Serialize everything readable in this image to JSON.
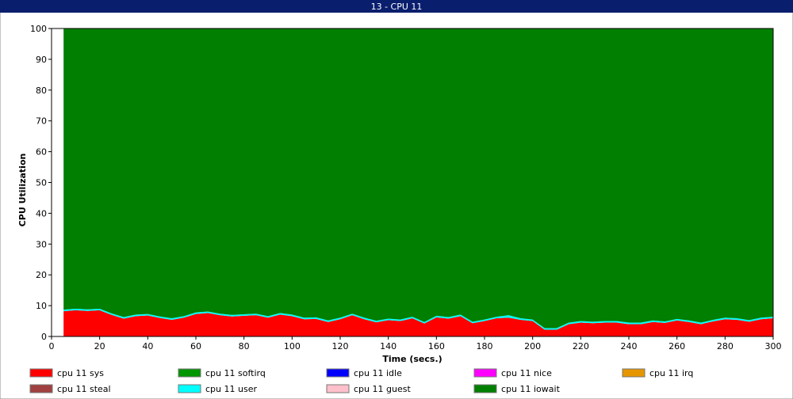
{
  "window_title": "13 - CPU 11",
  "chart_data": {
    "type": "stacked-area",
    "xlabel": "Time (secs.)",
    "ylabel": "CPU Utilization",
    "xlim": [
      0,
      300
    ],
    "xticks": [
      0,
      20,
      40,
      60,
      80,
      100,
      120,
      140,
      160,
      180,
      200,
      220,
      240,
      260,
      280,
      300
    ],
    "ylim": [
      0,
      100
    ],
    "yticks": [
      0,
      10,
      20,
      30,
      40,
      50,
      60,
      70,
      80,
      90,
      100
    ],
    "x": [
      5,
      10,
      15,
      20,
      25,
      30,
      35,
      40,
      45,
      50,
      55,
      60,
      65,
      70,
      75,
      80,
      85,
      90,
      95,
      100,
      105,
      110,
      115,
      120,
      125,
      130,
      135,
      140,
      145,
      150,
      155,
      160,
      165,
      170,
      175,
      180,
      185,
      190,
      195,
      200,
      205,
      210,
      215,
      220,
      225,
      230,
      235,
      240,
      245,
      250,
      255,
      260,
      265,
      270,
      275,
      280,
      285,
      290,
      295,
      300
    ],
    "series": [
      {
        "name": "cpu 11 sys",
        "color": "#ff0000",
        "values": [
          8.2,
          8.5,
          8.3,
          8.5,
          7,
          5.8,
          6.6,
          6.8,
          6,
          5.4,
          6.1,
          7.3,
          7.6,
          6.9,
          6.5,
          6.7,
          6.9,
          6.1,
          7.1,
          6.6,
          5.6,
          5.7,
          4.7,
          5.6,
          6.9,
          5.6,
          4.6,
          5.3,
          5,
          5.9,
          4.2,
          6.2,
          5.8,
          6.6,
          4.3,
          5,
          5.9,
          6.1,
          5.4,
          5,
          2.2,
          2.2,
          4,
          4.5,
          4.3,
          4.5,
          4.5,
          4,
          4,
          4.7,
          4.4,
          5.2,
          4.7,
          4,
          4.9,
          5.6,
          5.4,
          4.8,
          5.6,
          5.9
        ]
      },
      {
        "name": "cpu 11 softirq",
        "color": "#009600",
        "values": [
          0,
          0,
          0,
          0,
          0,
          0,
          0,
          0,
          0,
          0,
          0,
          0,
          0,
          0,
          0,
          0,
          0,
          0,
          0,
          0,
          0,
          0,
          0,
          0,
          0,
          0,
          0,
          0,
          0,
          0,
          0,
          0,
          0,
          0,
          0,
          0,
          0,
          0,
          0,
          0,
          0,
          0,
          0,
          0,
          0,
          0,
          0,
          0,
          0,
          0,
          0,
          0,
          0,
          0,
          0,
          0,
          0,
          0,
          0,
          0
        ]
      },
      {
        "name": "cpu 11 idle",
        "color": "#0000ff",
        "values": [
          0,
          0,
          0,
          0,
          0,
          0,
          0,
          0,
          0,
          0,
          0,
          0,
          0,
          0,
          0,
          0,
          0,
          0,
          0,
          0,
          0,
          0,
          0,
          0,
          0,
          0,
          0,
          0,
          0,
          0,
          0,
          0,
          0,
          0,
          0,
          0,
          0,
          0,
          0,
          0,
          0,
          0,
          0,
          0,
          0,
          0,
          0,
          0,
          0,
          0,
          0,
          0,
          0,
          0,
          0,
          0,
          0,
          0,
          0,
          0
        ]
      },
      {
        "name": "cpu 11 nice",
        "color": "#ff00ff",
        "values": [
          0,
          0,
          0,
          0,
          0,
          0,
          0,
          0,
          0,
          0,
          0,
          0,
          0,
          0,
          0,
          0,
          0,
          0,
          0,
          0,
          0,
          0,
          0,
          0,
          0,
          0,
          0,
          0,
          0,
          0,
          0,
          0,
          0,
          0,
          0,
          0,
          0,
          0,
          0,
          0,
          0,
          0,
          0,
          0,
          0,
          0,
          0,
          0,
          0,
          0,
          0,
          0,
          0,
          0,
          0,
          0,
          0,
          0,
          0,
          0
        ]
      },
      {
        "name": "cpu 11 irq",
        "color": "#e69600",
        "values": [
          0,
          0,
          0,
          0,
          0,
          0,
          0,
          0,
          0,
          0,
          0,
          0,
          0,
          0,
          0,
          0,
          0,
          0,
          0,
          0,
          0,
          0,
          0,
          0,
          0,
          0,
          0,
          0,
          0,
          0,
          0,
          0,
          0,
          0,
          0,
          0,
          0,
          0,
          0,
          0,
          0,
          0,
          0,
          0,
          0,
          0,
          0,
          0,
          0,
          0,
          0,
          0,
          0,
          0,
          0,
          0,
          0,
          0,
          0,
          0
        ]
      },
      {
        "name": "cpu 11 steal",
        "color": "#a04040",
        "values": [
          0,
          0,
          0,
          0,
          0,
          0,
          0,
          0,
          0,
          0,
          0,
          0,
          0,
          0,
          0,
          0,
          0,
          0,
          0,
          0,
          0,
          0,
          0,
          0,
          0,
          0,
          0,
          0,
          0,
          0,
          0,
          0,
          0,
          0,
          0,
          0,
          0,
          0,
          0,
          0,
          0,
          0,
          0,
          0,
          0,
          0,
          0,
          0,
          0,
          0,
          0,
          0,
          0,
          0,
          0,
          0,
          0,
          0,
          0,
          0
        ]
      },
      {
        "name": "cpu 11 user",
        "color": "#00ffff",
        "values": [
          0.5,
          0.5,
          0.5,
          0.5,
          0.5,
          0.5,
          0.5,
          0.5,
          0.5,
          0.5,
          0.5,
          0.5,
          0.5,
          0.5,
          0.5,
          0.5,
          0.5,
          0.5,
          0.5,
          0.5,
          0.5,
          0.5,
          0.5,
          0.5,
          0.5,
          0.5,
          0.5,
          0.5,
          0.5,
          0.5,
          0.5,
          0.5,
          0.5,
          0.5,
          0.5,
          0.5,
          0.5,
          0.8,
          0.5,
          0.5,
          0.5,
          0.5,
          0.5,
          0.5,
          0.5,
          0.5,
          0.5,
          0.5,
          0.5,
          0.5,
          0.5,
          0.5,
          0.5,
          0.5,
          0.5,
          0.5,
          0.5,
          0.5,
          0.5,
          0.5
        ]
      },
      {
        "name": "cpu 11 guest",
        "color": "#ffc0cb",
        "values": [
          0,
          0,
          0,
          0,
          0,
          0,
          0,
          0,
          0,
          0,
          0,
          0,
          0,
          0,
          0,
          0,
          0,
          0,
          0,
          0,
          0,
          0,
          0,
          0,
          0,
          0,
          0,
          0,
          0,
          0,
          0,
          0,
          0,
          0,
          0,
          0,
          0,
          0,
          0,
          0,
          0,
          0,
          0,
          0,
          0,
          0,
          0,
          0,
          0,
          0,
          0,
          0,
          0,
          0,
          0,
          0,
          0,
          0,
          0,
          0
        ]
      },
      {
        "name": "cpu 11 iowait",
        "color": "#007f00",
        "values": [
          91.3,
          91,
          91.2,
          91,
          92.5,
          93.7,
          92.9,
          92.7,
          93.5,
          94.1,
          93.4,
          92.2,
          91.9,
          92.6,
          93,
          92.8,
          92.6,
          93.4,
          92.4,
          92.9,
          93.9,
          93.8,
          94.8,
          93.9,
          92.6,
          93.9,
          94.9,
          94.2,
          94.5,
          93.6,
          95.3,
          93.3,
          93.7,
          92.9,
          95.2,
          94.5,
          93.6,
          93.1,
          94.1,
          94.5,
          97.3,
          97.3,
          95.5,
          95,
          95.2,
          95,
          95,
          95.5,
          95.5,
          94.8,
          95.1,
          94.3,
          94.8,
          95.5,
          94.6,
          93.9,
          94.1,
          94.7,
          93.9,
          93.6
        ]
      }
    ]
  }
}
